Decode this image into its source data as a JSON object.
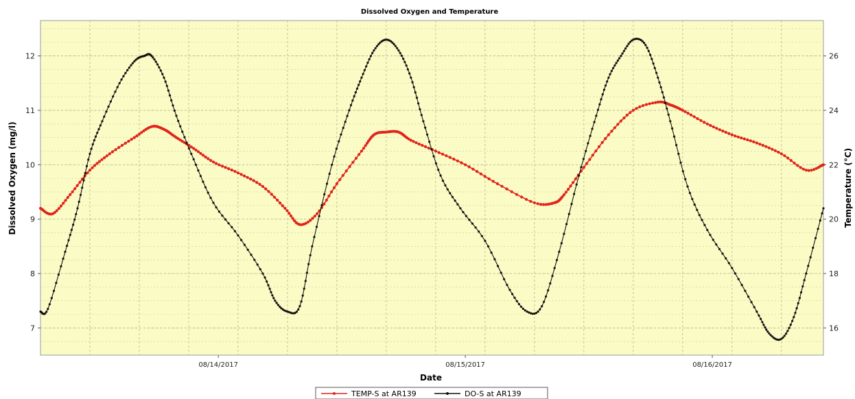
{
  "chart_data": {
    "type": "line",
    "title": "Dissolved Oxygen and Temperature",
    "xlabel": "Date",
    "ylabel": "Dissolved Oxygen (mg/l)",
    "y2label": "Temperature (°C)",
    "ylim": [
      6.5,
      12.65
    ],
    "y2lim": [
      15.0,
      27.3
    ],
    "xlim": [
      0,
      3.17
    ],
    "x_ticks": [
      {
        "x": 0.72,
        "label": "08/14/2017"
      },
      {
        "x": 1.72,
        "label": "08/15/2017"
      },
      {
        "x": 2.72,
        "label": "08/16/2017"
      }
    ],
    "yticks": [
      7,
      8,
      9,
      10,
      11,
      12
    ],
    "y2ticks": [
      16,
      18,
      20,
      22,
      24,
      26
    ],
    "grid": true,
    "legend": "bottom",
    "colors": {
      "plot_bg": "#fbfbc5",
      "temp": "#e0241b",
      "do": "#111111"
    },
    "series": [
      {
        "name": "TEMP-S at AR139",
        "axis": "right",
        "color": "#e0241b",
        "x": [
          0,
          0.05,
          0.12,
          0.2,
          0.28,
          0.38,
          0.45,
          0.5,
          0.55,
          0.62,
          0.7,
          0.8,
          0.9,
          0.99,
          1.05,
          1.12,
          1.2,
          1.3,
          1.35,
          1.4,
          1.45,
          1.5,
          1.6,
          1.72,
          1.85,
          2.0,
          2.08,
          2.12,
          2.2,
          2.3,
          2.4,
          2.5,
          2.55,
          2.6,
          2.7,
          2.8,
          2.9,
          3.0,
          3.1,
          3.17
        ],
        "values": [
          20.4,
          20.2,
          20.9,
          21.8,
          22.4,
          23.0,
          23.4,
          23.3,
          23.0,
          22.6,
          22.1,
          21.7,
          21.2,
          20.4,
          19.8,
          20.2,
          21.3,
          22.5,
          23.1,
          23.2,
          23.2,
          22.9,
          22.5,
          22.0,
          21.3,
          20.6,
          20.6,
          20.9,
          21.9,
          23.1,
          24.0,
          24.3,
          24.2,
          24.0,
          23.5,
          23.1,
          22.8,
          22.4,
          21.8,
          22.0
        ]
      },
      {
        "name": "DO-S at AR139",
        "axis": "left",
        "color": "#111111",
        "x": [
          0,
          0.03,
          0.1,
          0.15,
          0.2,
          0.25,
          0.32,
          0.38,
          0.42,
          0.45,
          0.5,
          0.55,
          0.62,
          0.7,
          0.8,
          0.9,
          0.95,
          1.0,
          1.05,
          1.1,
          1.18,
          1.25,
          1.3,
          1.35,
          1.4,
          1.45,
          1.5,
          1.55,
          1.62,
          1.7,
          1.8,
          1.9,
          1.97,
          2.03,
          2.1,
          2.18,
          2.25,
          2.3,
          2.35,
          2.4,
          2.45,
          2.5,
          2.55,
          2.62,
          2.7,
          2.8,
          2.9,
          2.95,
          3.0,
          3.05,
          3.1,
          3.17
        ],
        "values": [
          7.3,
          7.35,
          8.4,
          9.2,
          10.2,
          10.8,
          11.5,
          11.9,
          12.0,
          12.0,
          11.6,
          10.9,
          10.1,
          9.3,
          8.7,
          8.0,
          7.5,
          7.3,
          7.4,
          8.5,
          10.0,
          11.0,
          11.6,
          12.1,
          12.3,
          12.1,
          11.6,
          10.8,
          9.8,
          9.2,
          8.6,
          7.7,
          7.3,
          7.4,
          8.4,
          9.8,
          10.9,
          11.6,
          12.0,
          12.3,
          12.2,
          11.6,
          10.8,
          9.6,
          8.8,
          8.1,
          7.3,
          6.9,
          6.8,
          7.2,
          8.0,
          9.2
        ]
      }
    ]
  }
}
